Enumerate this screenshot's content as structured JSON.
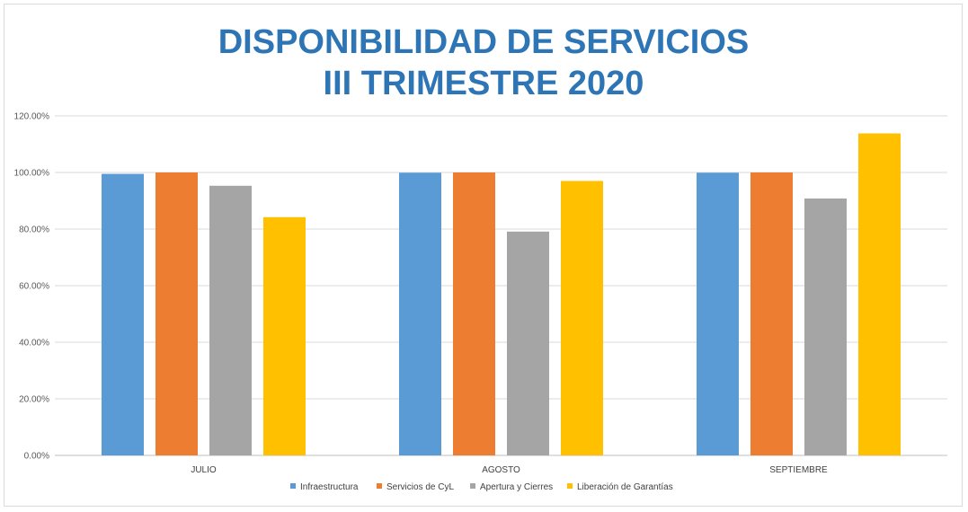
{
  "chart_data": {
    "type": "bar",
    "title": [
      "DISPONIBILIDAD DE SERVICIOS",
      "III TRIMESTRE 2020"
    ],
    "categories": [
      "JULIO",
      "AGOSTO",
      "SEPTIEMBRE"
    ],
    "series": [
      {
        "name": "Infraestructura",
        "color": "#5b9bd5",
        "values": [
          99.5,
          99.9,
          99.9
        ]
      },
      {
        "name": "Servicios de CyL",
        "color": "#ed7d31",
        "values": [
          100.0,
          100.0,
          100.0
        ]
      },
      {
        "name": "Apertura y Cierres",
        "color": "#a5a5a5",
        "values": [
          95.3,
          79.1,
          90.8
        ]
      },
      {
        "name": "Liberación de Garantías",
        "color": "#ffc000",
        "values": [
          84.2,
          97.0,
          113.8
        ]
      }
    ],
    "ylim": [
      0,
      120
    ],
    "yticks": [
      "0.00%",
      "20.00%",
      "40.00%",
      "60.00%",
      "80.00%",
      "100.00%",
      "120.00%"
    ],
    "ytick_values": [
      0,
      20,
      40,
      60,
      80,
      100,
      120
    ],
    "grid": true,
    "legend_position": "bottom",
    "title_color": "#2e75b6"
  }
}
